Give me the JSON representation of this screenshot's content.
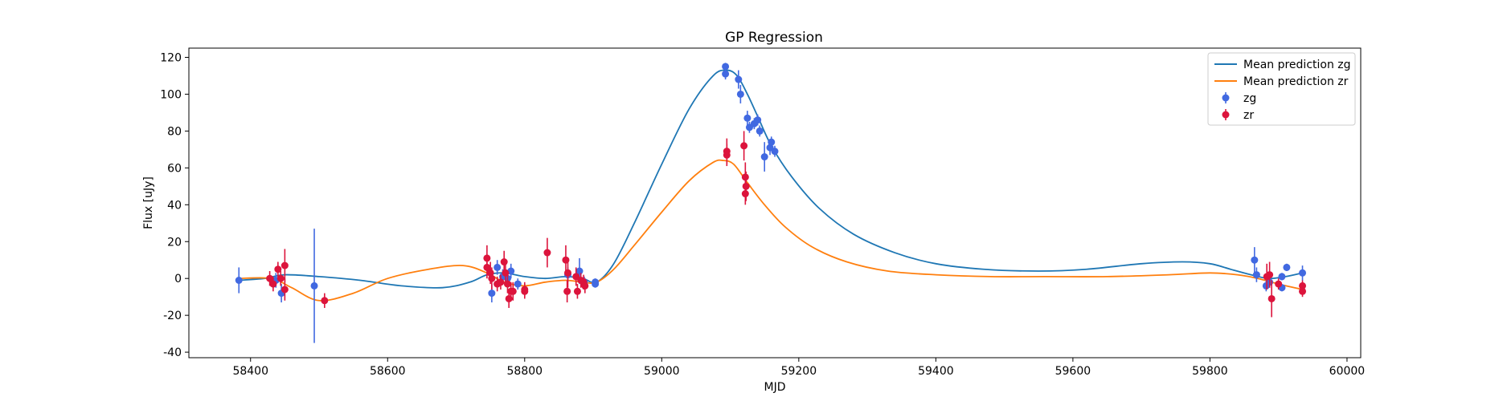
{
  "chart_data": {
    "type": "line",
    "title": "GP Regression",
    "xlabel": "MJD",
    "ylabel": "Flux [uJy]",
    "xlim": [
      58310,
      60020
    ],
    "ylim": [
      -43,
      125
    ],
    "xticks": [
      58400,
      58600,
      58800,
      59000,
      59200,
      59400,
      59600,
      59800,
      60000
    ],
    "yticks": [
      -40,
      -20,
      0,
      20,
      40,
      60,
      80,
      100,
      120
    ],
    "grid": false,
    "legend_position": "top-right",
    "legend": [
      "Mean prediction zg",
      "Mean prediction zr",
      "zg",
      "zr"
    ],
    "colors": {
      "mean_zg": "#1f77b4",
      "mean_zr": "#ff7f0e",
      "zg": "#4169e1",
      "zr": "#dc143c"
    },
    "series": [
      {
        "name": "Mean prediction zg",
        "kind": "line",
        "color": "#1f77b4",
        "x": [
          58383,
          58420,
          58450,
          58500,
          58560,
          58620,
          58680,
          58720,
          58745,
          58770,
          58800,
          58830,
          58860,
          58885,
          58905,
          58930,
          58960,
          59000,
          59040,
          59075,
          59095,
          59110,
          59125,
          59140,
          59160,
          59190,
          59230,
          59280,
          59340,
          59400,
          59470,
          59550,
          59620,
          59700,
          59760,
          59800,
          59830,
          59860,
          59885,
          59910,
          59935
        ],
        "y": [
          -1,
          0,
          2,
          1,
          -1,
          -4,
          -5,
          -2,
          2,
          3,
          1,
          0,
          1,
          0,
          -2,
          8,
          30,
          62,
          92,
          110,
          113,
          110,
          100,
          88,
          72,
          55,
          38,
          24,
          14,
          8,
          5,
          4,
          5,
          8,
          9,
          8,
          5,
          2,
          0,
          1,
          3
        ]
      },
      {
        "name": "Mean prediction zr",
        "kind": "line",
        "color": "#ff7f0e",
        "x": [
          58383,
          58430,
          58460,
          58500,
          58550,
          58600,
          58660,
          58710,
          58745,
          58770,
          58800,
          58830,
          58860,
          58885,
          58905,
          58930,
          58960,
          59000,
          59040,
          59075,
          59090,
          59105,
          59125,
          59150,
          59180,
          59220,
          59270,
          59330,
          59400,
          59480,
          59560,
          59650,
          59740,
          59800,
          59840,
          59870,
          59900,
          59935
        ],
        "y": [
          0,
          0,
          -5,
          -12,
          -8,
          0,
          5,
          7,
          3,
          -2,
          -4,
          -2,
          -1,
          -2,
          -2,
          5,
          18,
          36,
          53,
          63,
          64,
          62,
          52,
          40,
          28,
          17,
          9,
          4,
          2,
          1,
          1,
          1,
          2,
          3,
          2,
          0,
          -3,
          -6
        ]
      },
      {
        "name": "zg",
        "kind": "errorbar",
        "color": "#4169e1",
        "points": [
          [
            58383,
            -1,
            7
          ],
          [
            58437,
            -1,
            4
          ],
          [
            58445,
            -8,
            5
          ],
          [
            58493,
            -4,
            31
          ],
          [
            58752,
            -8,
            5
          ],
          [
            58760,
            6,
            4
          ],
          [
            58768,
            1,
            4
          ],
          [
            58775,
            0,
            4
          ],
          [
            58780,
            4,
            4
          ],
          [
            58790,
            -3,
            3
          ],
          [
            58863,
            2,
            4
          ],
          [
            58880,
            4,
            7
          ],
          [
            58887,
            -2,
            3
          ],
          [
            58903,
            -2,
            2
          ],
          [
            58903,
            -3,
            2
          ],
          [
            59093,
            115,
            2
          ],
          [
            59093,
            111,
            3
          ],
          [
            59112,
            108,
            5
          ],
          [
            59115,
            100,
            5
          ],
          [
            59125,
            87,
            4
          ],
          [
            59128,
            82,
            3
          ],
          [
            59135,
            84,
            3
          ],
          [
            59140,
            86,
            3
          ],
          [
            59143,
            80,
            3
          ],
          [
            59150,
            66,
            8
          ],
          [
            59158,
            71,
            4
          ],
          [
            59160,
            74,
            3
          ],
          [
            59165,
            69,
            3
          ],
          [
            59865,
            10,
            7
          ],
          [
            59868,
            2,
            4
          ],
          [
            59882,
            -4,
            3
          ],
          [
            59887,
            -2,
            3
          ],
          [
            59905,
            -5,
            2
          ],
          [
            59905,
            1,
            2
          ],
          [
            59912,
            6,
            2
          ],
          [
            59935,
            3,
            4
          ]
        ]
      },
      {
        "name": "zr",
        "kind": "errorbar",
        "color": "#dc143c",
        "points": [
          [
            58428,
            0,
            4
          ],
          [
            58433,
            -3,
            4
          ],
          [
            58440,
            5,
            4
          ],
          [
            58444,
            0,
            4
          ],
          [
            58450,
            7,
            9
          ],
          [
            58450,
            -6,
            6
          ],
          [
            58508,
            -12,
            4
          ],
          [
            58745,
            11,
            7
          ],
          [
            58745,
            6,
            6
          ],
          [
            58750,
            3,
            6
          ],
          [
            58752,
            0,
            6
          ],
          [
            58760,
            -3,
            4
          ],
          [
            58765,
            -2,
            4
          ],
          [
            58770,
            9,
            6
          ],
          [
            58772,
            3,
            6
          ],
          [
            58775,
            -3,
            5
          ],
          [
            58777,
            -11,
            5
          ],
          [
            58780,
            -7,
            5
          ],
          [
            58783,
            -7,
            5
          ],
          [
            58800,
            -7,
            4
          ],
          [
            58800,
            -6,
            4
          ],
          [
            58833,
            14,
            8
          ],
          [
            58860,
            10,
            8
          ],
          [
            58863,
            3,
            8
          ],
          [
            58862,
            -7,
            6
          ],
          [
            58875,
            1,
            5
          ],
          [
            58877,
            -7,
            4
          ],
          [
            58882,
            -1,
            4
          ],
          [
            58886,
            -2,
            4
          ],
          [
            58888,
            -4,
            4
          ],
          [
            59095,
            69,
            7
          ],
          [
            59095,
            67,
            6
          ],
          [
            59120,
            72,
            8
          ],
          [
            59122,
            55,
            8
          ],
          [
            59123,
            50,
            8
          ],
          [
            59122,
            46,
            6
          ],
          [
            59883,
            1,
            7
          ],
          [
            59887,
            2,
            7
          ],
          [
            59890,
            -11,
            10
          ],
          [
            59900,
            -3,
            3
          ],
          [
            59935,
            -4,
            3
          ],
          [
            59935,
            -7,
            3
          ]
        ]
      }
    ]
  }
}
